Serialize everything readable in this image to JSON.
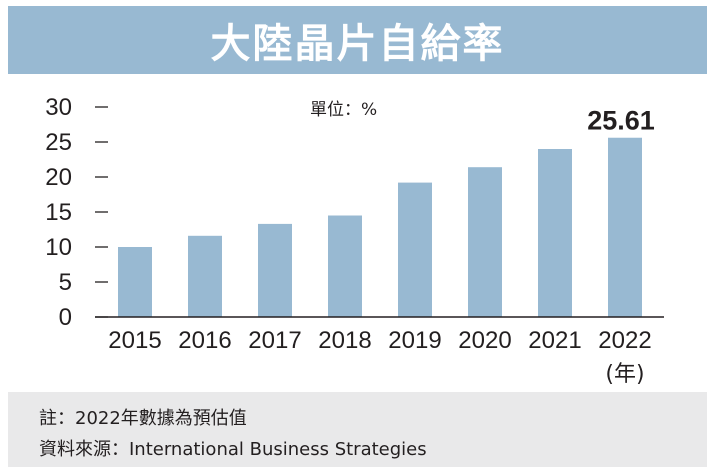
{
  "title": "大陸晶片自給率",
  "notes": {
    "note": "註：2022年數據為預估值",
    "source": "資料來源：International Business Strategies"
  },
  "colors": {
    "bar": "#98b9d2",
    "title_band": "#98b9d2",
    "note_band": "#e9e9ea",
    "text": "#231f20"
  },
  "chart_data": {
    "type": "bar",
    "title": "大陸晶片自給率",
    "unit_label": "單位：%",
    "categories": [
      "2015",
      "2016",
      "2017",
      "2018",
      "2019",
      "2020",
      "2021",
      "2022"
    ],
    "x_unit_label": "(年)",
    "values": [
      10,
      11.6,
      13.3,
      14.5,
      19.2,
      21.4,
      24.0,
      25.61
    ],
    "data_labels": [
      {
        "category": "2022",
        "text": "25.61"
      }
    ],
    "ylim": [
      0,
      30
    ],
    "yticks": [
      "0",
      "5",
      "10",
      "15",
      "20",
      "25",
      "30"
    ],
    "grid": false,
    "legend": "none"
  }
}
